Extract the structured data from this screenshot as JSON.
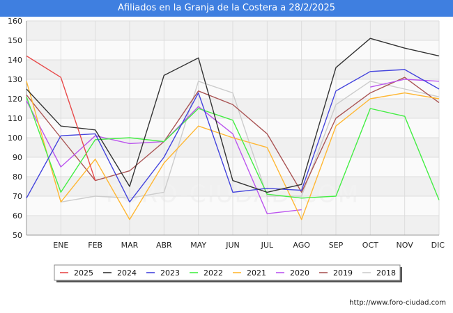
{
  "header": {
    "title": "Afiliados en la Granja de la Costera a 28/2/2025"
  },
  "footer": {
    "url": "http://www.foro-ciudad.com"
  },
  "watermark": "FORO-CIUDAD.COM",
  "chart_data": {
    "type": "line",
    "title": "Afiliados en la Granja de la Costera a 28/2/2025",
    "xlabel": "",
    "ylabel": "",
    "categories": [
      "",
      "ENE",
      "FEB",
      "MAR",
      "ABR",
      "MAY",
      "JUN",
      "JUL",
      "AGO",
      "SEP",
      "OCT",
      "NOV",
      "DIC"
    ],
    "ylim": [
      50,
      160
    ],
    "yticks": [
      50,
      60,
      70,
      80,
      90,
      100,
      110,
      120,
      130,
      140,
      150,
      160
    ],
    "grid": true,
    "legend_position": "bottom",
    "series": [
      {
        "name": "2025",
        "color": "#e84a4a",
        "values": [
          142,
          131,
          78,
          null,
          null,
          null,
          null,
          null,
          null,
          null,
          null,
          null,
          null
        ]
      },
      {
        "name": "2024",
        "color": "#333333",
        "values": [
          125,
          106,
          104,
          75,
          132,
          141,
          78,
          72,
          76,
          136,
          151,
          146,
          142
        ]
      },
      {
        "name": "2023",
        "color": "#4444dd",
        "values": [
          69,
          101,
          102,
          67,
          90,
          123,
          72,
          74,
          73,
          124,
          134,
          135,
          125
        ]
      },
      {
        "name": "2022",
        "color": "#44ee44",
        "values": [
          121,
          72,
          99,
          100,
          98,
          115,
          109,
          71,
          69,
          70,
          115,
          111,
          68
        ]
      },
      {
        "name": "2021",
        "color": "#ffb733",
        "values": [
          129,
          67,
          89,
          58,
          87,
          106,
          100,
          95,
          58,
          106,
          120,
          123,
          120
        ]
      },
      {
        "name": "2020",
        "color": "#bb55ee",
        "values": [
          119,
          85,
          101,
          97,
          98,
          116,
          102,
          61,
          63,
          null,
          126,
          130,
          129
        ]
      },
      {
        "name": "2019",
        "color": "#aa5555",
        "values": [
          122,
          100,
          78,
          83,
          98,
          124,
          117,
          102,
          72,
          110,
          123,
          131,
          118
        ]
      },
      {
        "name": "2018",
        "color": "#cccccc",
        "values": [
          null,
          67,
          70,
          69,
          72,
          129,
          123,
          70,
          70,
          117,
          129,
          125,
          121
        ]
      }
    ]
  }
}
